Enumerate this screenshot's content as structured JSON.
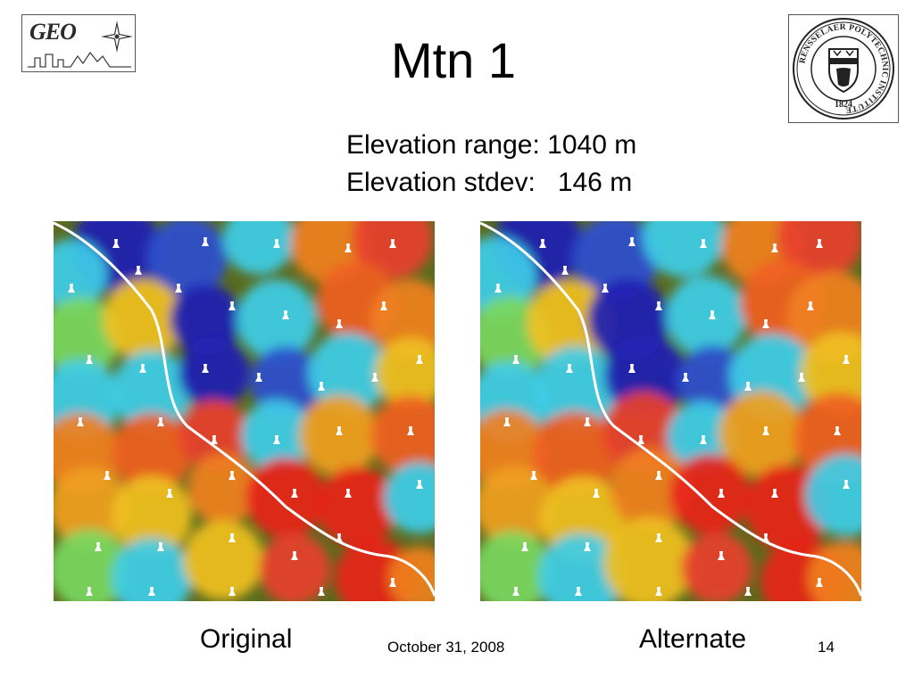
{
  "slide": {
    "title": "Mtn 1",
    "stats": {
      "range_label": "Elevation range:",
      "range_value": "1040 m",
      "stdev_label": "Elevation stdev:",
      "stdev_value": "146 m"
    },
    "captions": {
      "left": "Original",
      "right": "Alternate"
    },
    "footer": {
      "date": "October 31, 2008",
      "page": "14"
    }
  },
  "logos": {
    "geo": {
      "text": "GEO",
      "icon": "compass-rose-icon"
    },
    "rpi": {
      "ring_text": "RENSSELAER POLYTECHNIC INSTITUTE",
      "year": "1824",
      "icon": "university-seal-icon"
    }
  },
  "colors": {
    "terrain_low": "#1f1fb4",
    "terrain_mid": "#3ecde8",
    "terrain_high": "#e8231a",
    "background_terrain": "#5a6b1e",
    "road": "#ffffff"
  }
}
